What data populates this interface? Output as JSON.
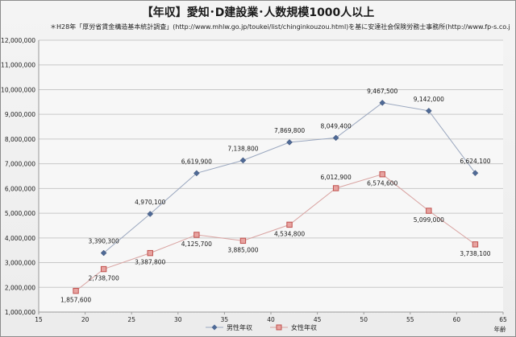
{
  "page": {
    "title": "【年収】愛知･D建設業･人数規模1000人以上"
  },
  "chart_data": {
    "type": "line",
    "title": "【年収】愛知･D建設業･人数規模1000人以上",
    "source": "＊H28年「厚労省賃金構造基本統計調査」(http://www.mhlw.go.jp/toukei/list/chinginkouzou.html)を基に安達社会保険労務士事務所(http://www.fp-s.co.jp)が作成",
    "xlabel": "年齢",
    "ylabel": "",
    "xlim": [
      15,
      65
    ],
    "ylim": [
      1000000,
      12000000
    ],
    "xticks": [
      15,
      20,
      25,
      30,
      35,
      40,
      45,
      50,
      55,
      60,
      65
    ],
    "xtick_labels": [
      "15",
      "20",
      "25",
      "30",
      "35",
      "40",
      "45",
      "50",
      "55",
      "60",
      "65"
    ],
    "yticks": [
      1000000,
      2000000,
      3000000,
      4000000,
      5000000,
      6000000,
      7000000,
      8000000,
      9000000,
      10000000,
      11000000,
      12000000
    ],
    "ytick_labels": [
      "1,000,000",
      "2,000,000",
      "3,000,000",
      "4,000,000",
      "5,000,000",
      "6,000,000",
      "7,000,000",
      "8,000,000",
      "9,000,000",
      "10,000,000",
      "11,000,000",
      "12,000,000"
    ],
    "grid": "horizontal",
    "legend_position": "bottom",
    "series": [
      {
        "name": "男性年収",
        "color": "#4f6a96",
        "marker": "diamond",
        "x": [
          22,
          27,
          32,
          37,
          42,
          47,
          52,
          57,
          62
        ],
        "values": [
          3390300,
          4970100,
          6619900,
          7138800,
          7869800,
          8049400,
          9467500,
          9142000,
          6624100
        ],
        "labels": [
          "3,390,300",
          "4,970,100",
          "6,619,900",
          "7,138,800",
          "7,869,800",
          "8,049,400",
          "9,467,500",
          "9,142,000",
          "6,624,100"
        ]
      },
      {
        "name": "女性年収",
        "color": "#c0504d",
        "marker": "square",
        "x": [
          19,
          22,
          27,
          32,
          37,
          42,
          47,
          52,
          57,
          62
        ],
        "values": [
          1857600,
          2738700,
          3387800,
          4125700,
          3885000,
          4534800,
          6012900,
          6574600,
          5099000,
          3738100
        ],
        "labels": [
          "1,857,600",
          "2,738,700",
          "3,387,800",
          "4,125,700",
          "3,885,000",
          "4,534,800",
          "6,012,900",
          "6,574,600",
          "5,099,000",
          "3,738,100"
        ]
      }
    ]
  }
}
